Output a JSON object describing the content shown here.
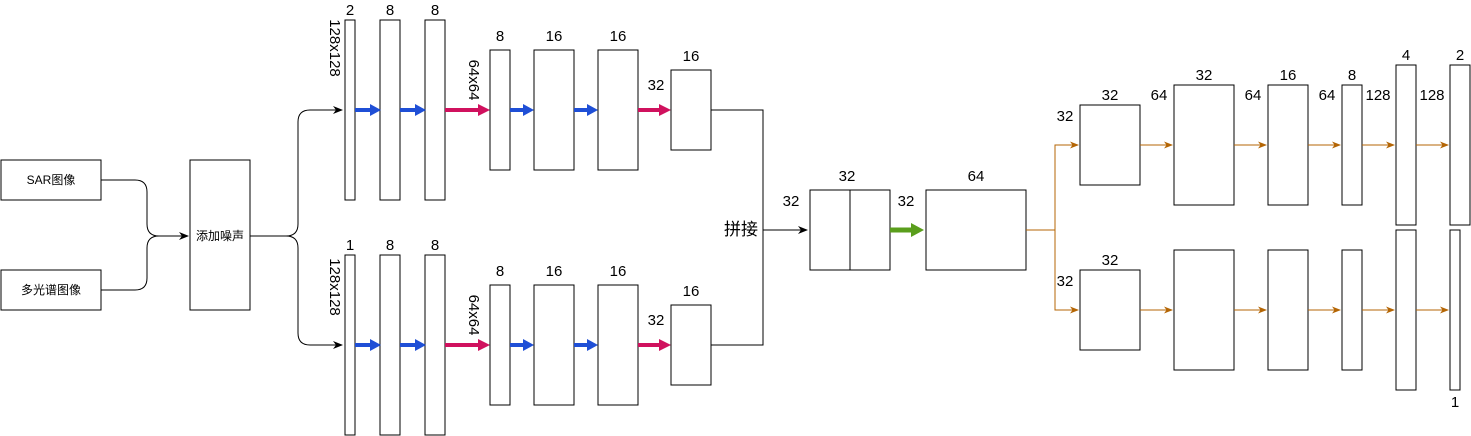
{
  "inputs": {
    "sar": "SAR图像",
    "multispectral": "多光谱图像"
  },
  "noise": "添加噪声",
  "concat": "拼接",
  "top_branch": {
    "size1": "128x128",
    "c1": "2",
    "c2": "8",
    "c3": "8",
    "size2": "64x64",
    "c4": "8",
    "c5": "16",
    "c6": "16",
    "c7_in": "32",
    "c7": "16"
  },
  "bottom_branch": {
    "size1": "128x128",
    "c1": "1",
    "c2": "8",
    "c3": "8",
    "size2": "64x64",
    "c4": "8",
    "c5": "16",
    "c6": "16",
    "c7_in": "32",
    "c7": "16"
  },
  "fusion": {
    "in": "32",
    "top": "32",
    "mid": "32",
    "out": "64"
  },
  "decoder_top": {
    "in": "32",
    "d1": "32",
    "s1": "64",
    "d2": "32",
    "s2": "64",
    "d3": "16",
    "s3": "64",
    "d4": "8",
    "s4": "128",
    "d5": "4",
    "s5": "128",
    "d6": "2"
  },
  "decoder_bottom": {
    "in": "32",
    "d1": "32",
    "out": "1"
  },
  "colors": {
    "blue_arrow": "#1f4fd6",
    "pink_arrow": "#d0115e",
    "green_arrow": "#5a9e1c",
    "brown_arrow": "#b46504"
  }
}
